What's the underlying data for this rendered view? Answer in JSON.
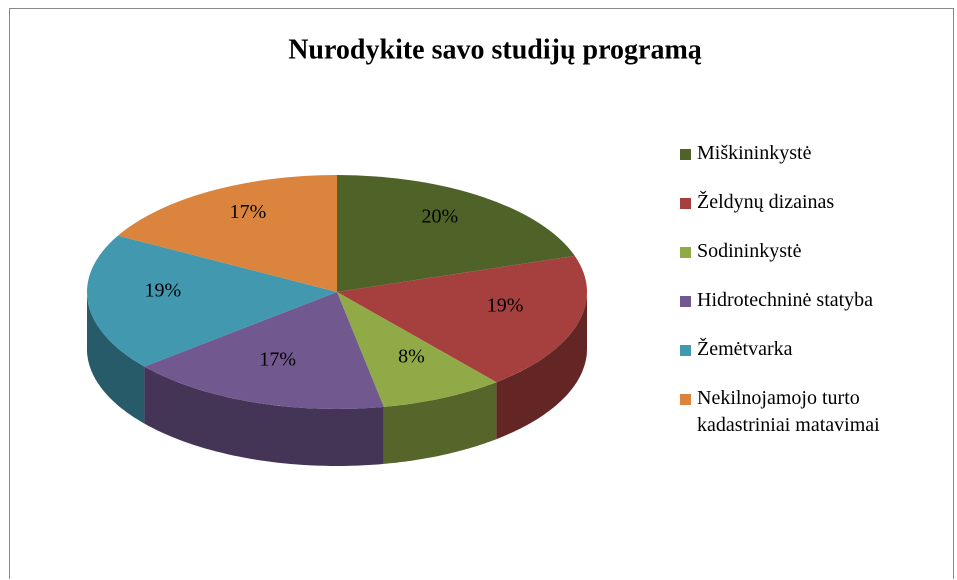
{
  "chart_data": {
    "type": "pie3d",
    "title": "Nurodykite savo studijų programą",
    "categories": [
      "Miškininkystė",
      "Želdynų dizainas",
      "Sodininkystė",
      "Hidrotechninė statyba",
      "Žemėtvarka",
      "Nekilnojamojo turto kadastriniai matavimai"
    ],
    "values": [
      20,
      19,
      8,
      17,
      19,
      17
    ],
    "value_labels": [
      "20%",
      "19%",
      "8%",
      "17%",
      "19%",
      "17%"
    ],
    "colors": [
      "#4f6228",
      "#a5403e",
      "#8faa46",
      "#71588f",
      "#4198af",
      "#db843d"
    ],
    "legend": "right"
  }
}
